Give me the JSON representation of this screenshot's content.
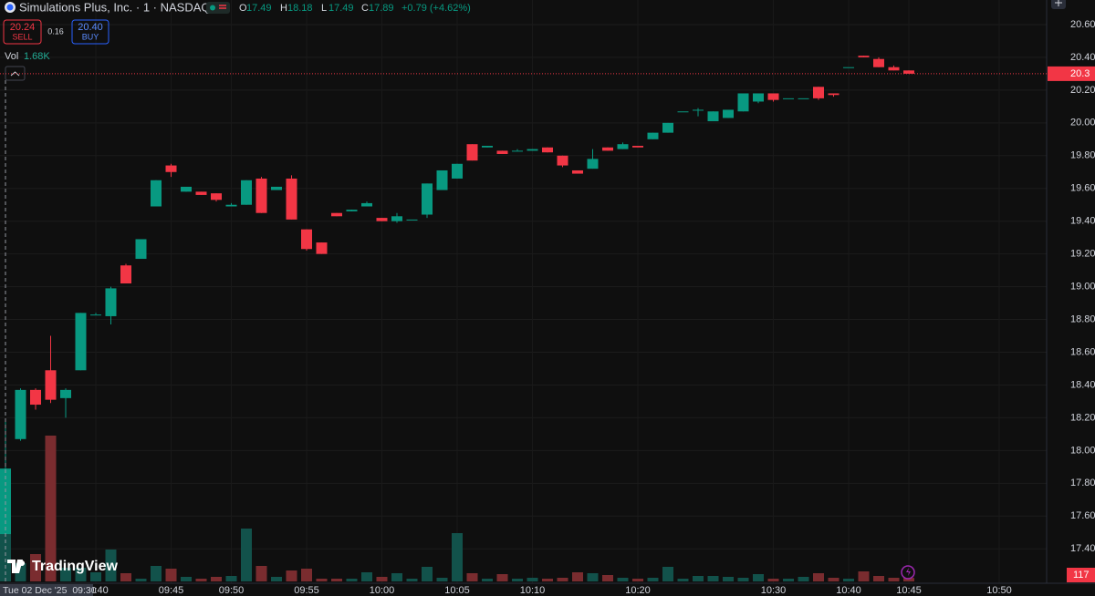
{
  "chart_data": {
    "type": "candlestick",
    "title": "Simulations Plus, Inc. · 1 · NASDAQ",
    "ohlc_labels": [
      "O",
      "H",
      "L",
      "C"
    ],
    "change": "+0.79 (+4.62%)",
    "sell_price": "20.24",
    "sell_label": "SELL",
    "spread": "0.16",
    "buy_price": "20.40",
    "buy_label": "BUY",
    "volume_label": "Vol",
    "volume_value_label": "1.68K",
    "crosshair_label": "Tue 02 Dec '25  09:30",
    "brand": "TradingView",
    "categories": [
      null,
      null,
      null,
      null,
      null,
      null,
      "09:40",
      null,
      null,
      null,
      null,
      "09:45",
      null,
      null,
      null,
      "09:50",
      null,
      null,
      null,
      null,
      "09:55",
      null,
      null,
      null,
      null,
      "10:00",
      null,
      null,
      null,
      null,
      "10:05",
      null,
      null,
      null,
      null,
      "10:10",
      null,
      null,
      null,
      null,
      null,
      null,
      "10:20",
      null,
      null,
      null,
      null,
      null,
      null,
      null,
      null,
      "10:30",
      null,
      null,
      null,
      null,
      "10:40",
      null,
      null,
      null,
      "10:45",
      null,
      null,
      null,
      null,
      null,
      "10:50"
    ],
    "open": [
      17.49,
      18.07,
      18.37,
      18.49,
      18.32,
      18.49,
      18.83,
      18.82,
      19.13,
      19.17,
      19.49,
      19.74,
      19.58,
      19.58,
      19.57,
      19.49,
      19.5,
      19.66,
      19.59,
      19.66,
      19.35,
      19.27,
      19.45,
      19.46,
      19.49,
      19.42,
      19.4,
      19.41,
      19.44,
      19.59,
      19.66,
      19.87,
      19.85,
      19.83,
      19.83,
      19.83,
      19.85,
      19.8,
      19.71,
      19.72,
      19.85,
      19.84,
      19.86,
      19.9,
      19.94,
      20.07,
      20.08,
      20.01,
      20.03,
      20.07,
      20.13,
      20.18,
      20.15,
      20.15,
      20.22,
      20.18,
      20.34,
      20.41,
      20.39,
      20.34,
      20.32,
      null,
      null,
      null,
      null,
      null,
      null
    ],
    "high": [
      18.18,
      18.38,
      18.38,
      18.7,
      18.38,
      18.84,
      18.84,
      19.0,
      19.14,
      19.29,
      19.65,
      19.75,
      19.61,
      19.58,
      19.57,
      19.51,
      19.65,
      19.67,
      19.61,
      19.68,
      19.35,
      19.27,
      19.45,
      19.47,
      19.52,
      19.42,
      19.45,
      19.41,
      19.63,
      19.71,
      19.75,
      19.87,
      19.86,
      19.83,
      19.84,
      19.84,
      19.85,
      19.8,
      19.71,
      19.84,
      19.85,
      19.88,
      19.86,
      19.94,
      20.0,
      20.07,
      20.09,
      20.07,
      20.08,
      20.18,
      20.18,
      20.18,
      20.15,
      20.15,
      20.22,
      20.18,
      20.34,
      20.41,
      20.4,
      20.35,
      20.32,
      null,
      null,
      null,
      null,
      null,
      null
    ],
    "low": [
      17.49,
      18.06,
      18.25,
      18.29,
      18.2,
      18.49,
      18.83,
      18.77,
      19.02,
      19.17,
      19.49,
      19.67,
      19.58,
      19.56,
      19.52,
      19.49,
      19.5,
      19.45,
      19.59,
      19.41,
      19.22,
      19.2,
      19.43,
      19.46,
      19.49,
      19.4,
      19.39,
      19.41,
      19.42,
      19.59,
      19.66,
      19.77,
      19.85,
      19.81,
      19.83,
      19.83,
      19.82,
      19.73,
      19.69,
      19.72,
      19.83,
      19.84,
      19.85,
      19.9,
      19.94,
      20.07,
      20.04,
      20.01,
      20.03,
      20.07,
      20.12,
      20.13,
      20.15,
      20.15,
      20.14,
      20.16,
      20.34,
      20.4,
      20.34,
      20.32,
      20.3,
      null,
      null,
      null,
      null,
      null,
      null
    ],
    "close": [
      17.89,
      18.37,
      18.28,
      18.31,
      18.37,
      18.84,
      18.83,
      18.99,
      19.02,
      19.29,
      19.65,
      19.7,
      19.61,
      19.56,
      19.53,
      19.5,
      19.65,
      19.45,
      19.61,
      19.41,
      19.23,
      19.2,
      19.43,
      19.47,
      19.51,
      19.4,
      19.43,
      19.41,
      19.63,
      19.71,
      19.75,
      19.77,
      19.86,
      19.81,
      19.83,
      19.84,
      19.82,
      19.74,
      19.69,
      19.78,
      19.83,
      19.87,
      19.85,
      19.94,
      20.0,
      20.07,
      20.08,
      20.07,
      20.08,
      20.18,
      20.18,
      20.14,
      20.15,
      20.15,
      20.15,
      20.17,
      20.34,
      20.4,
      20.34,
      20.32,
      20.3,
      null,
      null,
      null,
      null,
      null,
      null
    ],
    "volume": [
      1680,
      600,
      900,
      4800,
      450,
      450,
      300,
      1050,
      270,
      90,
      510,
      420,
      150,
      90,
      150,
      180,
      1740,
      510,
      150,
      360,
      420,
      90,
      90,
      90,
      300,
      150,
      270,
      90,
      480,
      120,
      1590,
      270,
      90,
      240,
      90,
      120,
      90,
      120,
      300,
      270,
      210,
      120,
      90,
      120,
      480,
      90,
      180,
      180,
      150,
      120,
      240,
      90,
      90,
      150,
      270,
      120,
      90,
      330,
      180,
      120,
      117,
      null,
      null,
      null,
      null,
      null,
      null
    ],
    "up_color": "#089981",
    "down_color": "#f23645",
    "volume_up_color": "#12524b",
    "volume_down_color": "#7a2c2f",
    "ylim": [
      17.19,
      20.75
    ],
    "yticks": [
      {
        "value": 17.4,
        "label": "17.40"
      },
      {
        "value": 17.6,
        "label": "17.60"
      },
      {
        "value": 17.8,
        "label": "17.80"
      },
      {
        "value": 18.0,
        "label": "18.00"
      },
      {
        "value": 18.2,
        "label": "18.20"
      },
      {
        "value": 18.4,
        "label": "18.40"
      },
      {
        "value": 18.6,
        "label": "18.60"
      },
      {
        "value": 18.8,
        "label": "18.80"
      },
      {
        "value": 19.0,
        "label": "19.00"
      },
      {
        "value": 19.2,
        "label": "19.20"
      },
      {
        "value": 19.4,
        "label": "19.40"
      },
      {
        "value": 19.6,
        "label": "19.60"
      },
      {
        "value": 19.8,
        "label": "19.80"
      },
      {
        "value": 20.0,
        "label": "20.00"
      },
      {
        "value": 20.2,
        "label": "20.20"
      },
      {
        "value": 20.4,
        "label": "20.40"
      },
      {
        "value": 20.6,
        "label": "20.60"
      }
    ],
    "volume_ylim": [
      0,
      6000
    ],
    "grid": true
  }
}
